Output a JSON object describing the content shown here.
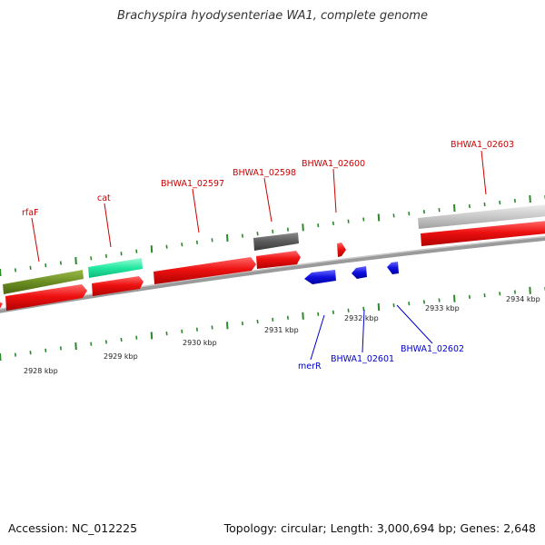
{
  "title": "Brachyspira hyodysenteriae WA1, complete genome",
  "footer": {
    "accession": "Accession: NC_012225",
    "topology": "Topology: circular; Length: 3,000,694 bp; Genes: 2,648"
  },
  "axis_ticks": [
    {
      "label": "2928 kbp"
    },
    {
      "label": "2929 kbp"
    },
    {
      "label": "2930 kbp"
    },
    {
      "label": "2931 kbp"
    },
    {
      "label": "2932 kbp"
    },
    {
      "label": "2933 kbp"
    },
    {
      "label": "2934 kbp"
    }
  ],
  "gene_labels_forward": [
    {
      "name": "rfaF"
    },
    {
      "name": "cat"
    },
    {
      "name": "BHWA1_02597"
    },
    {
      "name": "BHWA1_02598"
    },
    {
      "name": "BHWA1_02600"
    },
    {
      "name": "BHWA1_02603"
    }
  ],
  "gene_labels_reverse": [
    {
      "name": "merR"
    },
    {
      "name": "BHWA1_02601"
    },
    {
      "name": "BHWA1_02602"
    }
  ],
  "colors": {
    "cds": "#ee1111",
    "gene_rfaF": "#6b8e23",
    "gene_cat": "#22e8a0",
    "gene_02598": "#555555",
    "gene_02603": "#c8c8c8",
    "reverse": "#1010e0",
    "tick": "#2a8a2a",
    "backbone": "#888888"
  }
}
